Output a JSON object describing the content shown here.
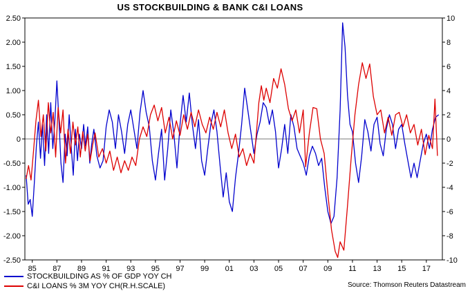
{
  "title": "US STOCKBUILDING & BANK C&I LOANS",
  "source": "Source: Thomson Reuters Datastream",
  "colors": {
    "stockbuilding": "#0000cd",
    "ci_loans": "#dd0000",
    "zero_line": "#777777",
    "frame": "#000000"
  },
  "legend": [
    {
      "label": "STOCKBUILDING AS % OF GDP YOY CH",
      "color": "#0000cd"
    },
    {
      "label": "C&I LOANS % 3M YOY CH(R.H.SCALE)",
      "color": "#dd0000"
    }
  ],
  "chart_data": {
    "type": "line",
    "title": "US STOCKBUILDING & BANK C&I LOANS",
    "grid": false,
    "legend_position": "bottom-left",
    "x_axis": {
      "range": [
        1984.4,
        2018.3
      ],
      "tick_values": [
        1985,
        1987,
        1989,
        1991,
        1993,
        1995,
        1997,
        1999,
        2001,
        2003,
        2005,
        2007,
        2009,
        2011,
        2013,
        2015,
        2017
      ],
      "tick_labels": [
        "85",
        "87",
        "89",
        "91",
        "93",
        "95",
        "97",
        "99",
        "01",
        "03",
        "05",
        "07",
        "09",
        "11",
        "13",
        "15",
        "17"
      ]
    },
    "left_axis": {
      "range": [
        -2.5,
        2.5
      ],
      "tick_values": [
        2.5,
        2.0,
        1.5,
        1.0,
        0.5,
        0,
        -0.5,
        -1.0,
        -1.5,
        -2.0,
        -2.5
      ],
      "tick_labels": [
        "2.50",
        "2.00",
        "1.50",
        "1.00",
        "0.50",
        "0",
        "-0.50",
        "-1.00",
        "-1.50",
        "-2.00",
        "-2.50"
      ]
    },
    "right_axis": {
      "range": [
        -10,
        10
      ],
      "tick_values": [
        10,
        8,
        6,
        4,
        2,
        0,
        -2,
        -4,
        -6,
        -8,
        -10
      ],
      "tick_labels": [
        "10",
        "8",
        "6",
        "4",
        "2",
        "0",
        "-2",
        "-4",
        "-6",
        "-8",
        "-10"
      ]
    },
    "series": [
      {
        "name": "STOCKBUILDING AS % OF GDP YOY CH",
        "axis": "left",
        "color": "#0000cd",
        "points": [
          [
            1984.5,
            -0.75
          ],
          [
            1984.67,
            -1.35
          ],
          [
            1984.83,
            -1.25
          ],
          [
            1985.0,
            -1.6
          ],
          [
            1985.17,
            -0.9
          ],
          [
            1985.33,
            -0.15
          ],
          [
            1985.5,
            0.35
          ],
          [
            1985.67,
            -0.4
          ],
          [
            1985.83,
            0.3
          ],
          [
            1986.0,
            -0.55
          ],
          [
            1986.17,
            0.5
          ],
          [
            1986.33,
            -0.3
          ],
          [
            1986.5,
            0.75
          ],
          [
            1986.67,
            -0.2
          ],
          [
            1986.83,
            0.35
          ],
          [
            1987.0,
            1.2
          ],
          [
            1987.17,
            0.35
          ],
          [
            1987.33,
            -0.5
          ],
          [
            1987.5,
            -0.9
          ],
          [
            1987.67,
            0.1
          ],
          [
            1987.83,
            -0.35
          ],
          [
            1988.0,
            0.5
          ],
          [
            1988.17,
            -0.2
          ],
          [
            1988.33,
            -0.75
          ],
          [
            1988.5,
            0.2
          ],
          [
            1988.67,
            -0.45
          ],
          [
            1988.83,
            0.1
          ],
          [
            1989.0,
            -0.2
          ],
          [
            1989.17,
            0.3
          ],
          [
            1989.33,
            -0.15
          ],
          [
            1989.5,
            0.25
          ],
          [
            1989.67,
            -0.5
          ],
          [
            1989.83,
            -0.1
          ],
          [
            1990.0,
            0.2
          ],
          [
            1990.25,
            -0.35
          ],
          [
            1990.5,
            -0.6
          ],
          [
            1990.75,
            -0.45
          ],
          [
            1991.0,
            0.25
          ],
          [
            1991.25,
            0.6
          ],
          [
            1991.5,
            0.35
          ],
          [
            1991.75,
            -0.2
          ],
          [
            1992.0,
            0.5
          ],
          [
            1992.25,
            0.15
          ],
          [
            1992.5,
            -0.3
          ],
          [
            1992.75,
            0.3
          ],
          [
            1993.0,
            0.6
          ],
          [
            1993.25,
            0.2
          ],
          [
            1993.5,
            -0.2
          ],
          [
            1993.75,
            0.55
          ],
          [
            1994.0,
            1.0
          ],
          [
            1994.25,
            0.55
          ],
          [
            1994.5,
            0.25
          ],
          [
            1994.75,
            -0.45
          ],
          [
            1995.0,
            -0.85
          ],
          [
            1995.25,
            -0.3
          ],
          [
            1995.5,
            0.2
          ],
          [
            1995.75,
            -0.85
          ],
          [
            1996.0,
            -0.2
          ],
          [
            1996.25,
            0.6
          ],
          [
            1996.5,
            0.1
          ],
          [
            1996.75,
            -0.6
          ],
          [
            1997.0,
            0.3
          ],
          [
            1997.25,
            0.9
          ],
          [
            1997.5,
            0.35
          ],
          [
            1997.75,
            0.95
          ],
          [
            1998.0,
            0.3
          ],
          [
            1998.25,
            -0.2
          ],
          [
            1998.5,
            0.4
          ],
          [
            1998.75,
            -0.45
          ],
          [
            1999.0,
            -0.75
          ],
          [
            1999.25,
            -0.2
          ],
          [
            1999.5,
            0.3
          ],
          [
            1999.75,
            0.6
          ],
          [
            2000.0,
            0.15
          ],
          [
            2000.25,
            -0.55
          ],
          [
            2000.5,
            -1.2
          ],
          [
            2000.75,
            -0.7
          ],
          [
            2001.0,
            -1.3
          ],
          [
            2001.25,
            -1.5
          ],
          [
            2001.5,
            -0.8
          ],
          [
            2001.75,
            -0.3
          ],
          [
            2002.0,
            0.3
          ],
          [
            2002.25,
            1.05
          ],
          [
            2002.5,
            0.6
          ],
          [
            2002.75,
            0.15
          ],
          [
            2003.0,
            -0.3
          ],
          [
            2003.25,
            0.1
          ],
          [
            2003.5,
            0.35
          ],
          [
            2003.75,
            0.75
          ],
          [
            2004.0,
            0.65
          ],
          [
            2004.25,
            0.3
          ],
          [
            2004.5,
            0.6
          ],
          [
            2004.75,
            0.15
          ],
          [
            2005.0,
            -0.6
          ],
          [
            2005.25,
            -0.2
          ],
          [
            2005.5,
            0.3
          ],
          [
            2005.75,
            -0.3
          ],
          [
            2006.0,
            0.5
          ],
          [
            2006.25,
            0.25
          ],
          [
            2006.5,
            -0.2
          ],
          [
            2006.75,
            -0.35
          ],
          [
            2007.0,
            -0.5
          ],
          [
            2007.25,
            -0.75
          ],
          [
            2007.5,
            -0.35
          ],
          [
            2007.75,
            -0.15
          ],
          [
            2008.0,
            -0.3
          ],
          [
            2008.25,
            -0.55
          ],
          [
            2008.5,
            -0.4
          ],
          [
            2008.75,
            -1.0
          ],
          [
            2009.0,
            -1.5
          ],
          [
            2009.25,
            -1.75
          ],
          [
            2009.5,
            -1.6
          ],
          [
            2009.75,
            -0.8
          ],
          [
            2010.0,
            0.6
          ],
          [
            2010.2,
            2.4
          ],
          [
            2010.4,
            1.9
          ],
          [
            2010.6,
            0.9
          ],
          [
            2010.8,
            0.3
          ],
          [
            2011.0,
            0.15
          ],
          [
            2011.25,
            -0.5
          ],
          [
            2011.5,
            -0.9
          ],
          [
            2011.75,
            -0.35
          ],
          [
            2012.0,
            0.4
          ],
          [
            2012.25,
            0.15
          ],
          [
            2012.5,
            -0.25
          ],
          [
            2012.75,
            0.3
          ],
          [
            2013.0,
            0.45
          ],
          [
            2013.25,
            -0.1
          ],
          [
            2013.5,
            -0.35
          ],
          [
            2013.75,
            0.2
          ],
          [
            2014.0,
            0.5
          ],
          [
            2014.25,
            0.3
          ],
          [
            2014.5,
            -0.2
          ],
          [
            2014.75,
            0.2
          ],
          [
            2015.0,
            0.3
          ],
          [
            2015.25,
            -0.1
          ],
          [
            2015.5,
            -0.45
          ],
          [
            2015.75,
            -0.8
          ],
          [
            2016.0,
            -0.5
          ],
          [
            2016.25,
            -0.8
          ],
          [
            2016.5,
            -0.45
          ],
          [
            2016.75,
            -0.1
          ],
          [
            2017.0,
            0.1
          ],
          [
            2017.25,
            -0.2
          ],
          [
            2017.5,
            0.2
          ],
          [
            2017.75,
            0.45
          ],
          [
            2018.0,
            0.5
          ]
        ]
      },
      {
        "name": "C&I LOANS % 3M YOY CH(R.H.SCALE)",
        "axis": "right",
        "color": "#dd0000",
        "points": [
          [
            1984.5,
            -3.3
          ],
          [
            1984.7,
            -2.2
          ],
          [
            1984.9,
            -3.4
          ],
          [
            1985.1,
            -1.0
          ],
          [
            1985.3,
            1.5
          ],
          [
            1985.5,
            3.2
          ],
          [
            1985.7,
            0.2
          ],
          [
            1985.9,
            2.0
          ],
          [
            1986.1,
            -1.0
          ],
          [
            1986.3,
            3.0
          ],
          [
            1986.5,
            0.5
          ],
          [
            1986.7,
            2.2
          ],
          [
            1986.9,
            -1.5
          ],
          [
            1987.1,
            2.6
          ],
          [
            1987.3,
            0.5
          ],
          [
            1987.5,
            2.4
          ],
          [
            1987.7,
            -2.0
          ],
          [
            1987.9,
            0.8
          ],
          [
            1988.1,
            -1.2
          ],
          [
            1988.3,
            1.4
          ],
          [
            1988.5,
            -0.5
          ],
          [
            1988.7,
            1.0
          ],
          [
            1988.9,
            -1.5
          ],
          [
            1989.1,
            0.6
          ],
          [
            1989.3,
            -1.0
          ],
          [
            1989.5,
            0.4
          ],
          [
            1989.7,
            -1.8
          ],
          [
            1989.9,
            -0.5
          ],
          [
            1990.1,
            0.5
          ],
          [
            1990.4,
            -1.5
          ],
          [
            1990.7,
            -0.8
          ],
          [
            1991.0,
            -2.0
          ],
          [
            1991.3,
            -1.0
          ],
          [
            1991.6,
            -2.6
          ],
          [
            1991.9,
            -1.5
          ],
          [
            1992.2,
            -2.8
          ],
          [
            1992.5,
            -1.8
          ],
          [
            1992.8,
            -2.6
          ],
          [
            1993.1,
            -1.5
          ],
          [
            1993.4,
            -2.2
          ],
          [
            1993.7,
            0.0
          ],
          [
            1994.0,
            1.0
          ],
          [
            1994.3,
            0.2
          ],
          [
            1994.6,
            2.0
          ],
          [
            1994.9,
            2.8
          ],
          [
            1995.2,
            1.5
          ],
          [
            1995.5,
            2.6
          ],
          [
            1995.8,
            0.5
          ],
          [
            1996.1,
            1.8
          ],
          [
            1996.4,
            0.0
          ],
          [
            1996.7,
            1.5
          ],
          [
            1997.0,
            0.3
          ],
          [
            1997.3,
            2.0
          ],
          [
            1997.6,
            0.8
          ],
          [
            1997.9,
            2.2
          ],
          [
            1998.2,
            1.0
          ],
          [
            1998.5,
            2.4
          ],
          [
            1998.8,
            1.2
          ],
          [
            1999.1,
            0.5
          ],
          [
            1999.4,
            1.8
          ],
          [
            1999.7,
            0.8
          ],
          [
            2000.0,
            2.2
          ],
          [
            2000.3,
            1.0
          ],
          [
            2000.6,
            2.4
          ],
          [
            2000.9,
            0.5
          ],
          [
            2001.2,
            -0.8
          ],
          [
            2001.5,
            0.4
          ],
          [
            2001.8,
            -1.5
          ],
          [
            2002.1,
            -0.8
          ],
          [
            2002.4,
            -2.2
          ],
          [
            2002.7,
            -1.2
          ],
          [
            2003.0,
            -2.0
          ],
          [
            2003.2,
            0.5
          ],
          [
            2003.4,
            3.0
          ],
          [
            2003.6,
            4.4
          ],
          [
            2003.8,
            3.2
          ],
          [
            2004.0,
            4.2
          ],
          [
            2004.3,
            3.0
          ],
          [
            2004.6,
            5.0
          ],
          [
            2004.9,
            4.2
          ],
          [
            2005.2,
            5.8
          ],
          [
            2005.5,
            4.5
          ],
          [
            2005.8,
            2.5
          ],
          [
            2006.1,
            1.5
          ],
          [
            2006.4,
            2.4
          ],
          [
            2006.7,
            0.5
          ],
          [
            2007.0,
            2.4
          ],
          [
            2007.2,
            -2.3
          ],
          [
            2007.5,
            0.5
          ],
          [
            2007.8,
            2.6
          ],
          [
            2008.1,
            2.5
          ],
          [
            2008.4,
            0.0
          ],
          [
            2008.7,
            -1.2
          ],
          [
            2009.0,
            -4.5
          ],
          [
            2009.3,
            -7.5
          ],
          [
            2009.6,
            -9.3
          ],
          [
            2009.8,
            -9.8
          ],
          [
            2010.0,
            -8.5
          ],
          [
            2010.3,
            -9.2
          ],
          [
            2010.6,
            -5.5
          ],
          [
            2010.9,
            -1.5
          ],
          [
            2011.2,
            2.0
          ],
          [
            2011.5,
            4.5
          ],
          [
            2011.8,
            6.3
          ],
          [
            2012.1,
            5.0
          ],
          [
            2012.4,
            6.2
          ],
          [
            2012.7,
            3.5
          ],
          [
            2013.0,
            2.0
          ],
          [
            2013.3,
            2.4
          ],
          [
            2013.6,
            0.5
          ],
          [
            2013.9,
            1.8
          ],
          [
            2014.2,
            0.3
          ],
          [
            2014.5,
            2.0
          ],
          [
            2014.8,
            2.2
          ],
          [
            2015.1,
            1.0
          ],
          [
            2015.4,
            2.0
          ],
          [
            2015.7,
            0.5
          ],
          [
            2016.0,
            1.2
          ],
          [
            2016.3,
            -0.5
          ],
          [
            2016.6,
            0.8
          ],
          [
            2016.9,
            -1.3
          ],
          [
            2017.2,
            0.3
          ],
          [
            2017.5,
            -0.8
          ],
          [
            2017.7,
            3.3
          ],
          [
            2017.9,
            -1.4
          ]
        ]
      }
    ]
  }
}
